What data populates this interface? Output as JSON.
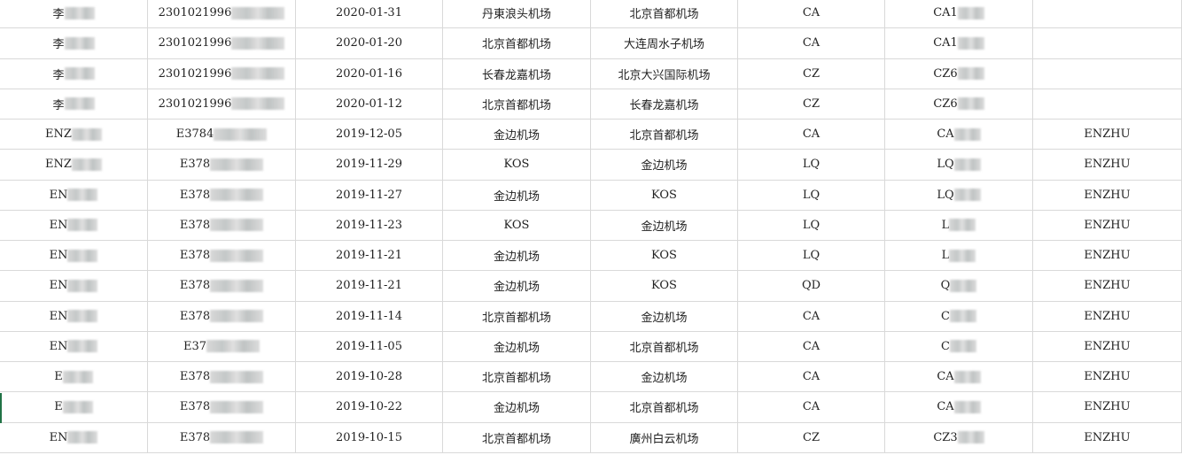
{
  "rows": [
    {
      "name": "李",
      "id": "2301021996",
      "date": "2020-01-31",
      "from": "丹東浪头机场",
      "to": "北京首都机场",
      "airline": "CA",
      "flight": "CA1",
      "pax": ""
    },
    {
      "name": "李",
      "id": "2301021996",
      "date": "2020-01-20",
      "from": "北京首都机场",
      "to": "大连周水子机场",
      "airline": "CA",
      "flight": "CA1",
      "pax": ""
    },
    {
      "name": "李",
      "id": "2301021996",
      "date": "2020-01-16",
      "from": "长春龙嘉机场",
      "to": "北京大兴国际机场",
      "airline": "CZ",
      "flight": "CZ6",
      "pax": ""
    },
    {
      "name": "李",
      "id": "2301021996",
      "date": "2020-01-12",
      "from": "北京首都机场",
      "to": "长春龙嘉机场",
      "airline": "CZ",
      "flight": "CZ6",
      "pax": ""
    },
    {
      "name": "ENZ",
      "id": "E3784",
      "date": "2019-12-05",
      "from": "金边机场",
      "to": "北京首都机场",
      "airline": "CA",
      "flight": "CA",
      "pax": "ENZHU"
    },
    {
      "name": "ENZ",
      "id": "E378",
      "date": "2019-11-29",
      "from": "KOS",
      "to": "金边机场",
      "airline": "LQ",
      "flight": "LQ",
      "pax": "ENZHU"
    },
    {
      "name": "EN",
      "id": "E378",
      "date": "2019-11-27",
      "from": "金边机场",
      "to": "KOS",
      "airline": "LQ",
      "flight": "LQ",
      "pax": "ENZHU"
    },
    {
      "name": "EN",
      "id": "E378",
      "date": "2019-11-23",
      "from": "KOS",
      "to": "金边机场",
      "airline": "LQ",
      "flight": "L",
      "pax": "ENZHU"
    },
    {
      "name": "EN",
      "id": "E378",
      "date": "2019-11-21",
      "from": "金边机场",
      "to": "KOS",
      "airline": "LQ",
      "flight": "L",
      "pax": "ENZHU"
    },
    {
      "name": "EN",
      "id": "E378",
      "date": "2019-11-21",
      "from": "金边机场",
      "to": "KOS",
      "airline": "QD",
      "flight": "Q",
      "pax": "ENZHU"
    },
    {
      "name": "EN",
      "id": "E378",
      "date": "2019-11-14",
      "from": "北京首都机场",
      "to": "金边机场",
      "airline": "CA",
      "flight": "C",
      "pax": "ENZHU"
    },
    {
      "name": "EN",
      "id": "E37",
      "date": "2019-11-05",
      "from": "金边机场",
      "to": "北京首都机场",
      "airline": "CA",
      "flight": "C",
      "pax": "ENZHU"
    },
    {
      "name": "E",
      "id": "E378",
      "date": "2019-10-28",
      "from": "北京首都机场",
      "to": "金边机场",
      "airline": "CA",
      "flight": "CA",
      "pax": "ENZHU"
    },
    {
      "name": "E",
      "id": "E378",
      "date": "2019-10-22",
      "from": "金边机场",
      "to": "北京首都机场",
      "airline": "CA",
      "flight": "CA",
      "pax": "ENZHU"
    },
    {
      "name": "EN",
      "id": "E378",
      "date": "2019-10-15",
      "from": "北京首都机场",
      "to": "廣州白云机场",
      "airline": "CZ",
      "flight": "CZ3",
      "pax": "ENZHU"
    }
  ]
}
